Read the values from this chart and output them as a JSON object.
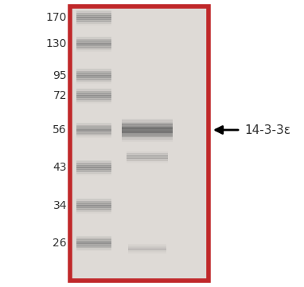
{
  "fig_width": 3.82,
  "fig_height": 3.6,
  "dpi": 100,
  "gel_bg_color": "#dedad6",
  "gel_border_color": "#c0282a",
  "gel_border_lw": 4.0,
  "outer_bg_color": "#ffffff",
  "mw_labels": [
    "170",
    "130",
    "95",
    "72",
    "56",
    "43",
    "34",
    "26"
  ],
  "mw_label_fontsize": 10,
  "mw_label_color": "#333333",
  "annotation_text": "14-3-3ε",
  "annotation_fontsize": 11,
  "annotation_color": "#333333",
  "band_color": "#606060",
  "marker_band_color": "#808080"
}
